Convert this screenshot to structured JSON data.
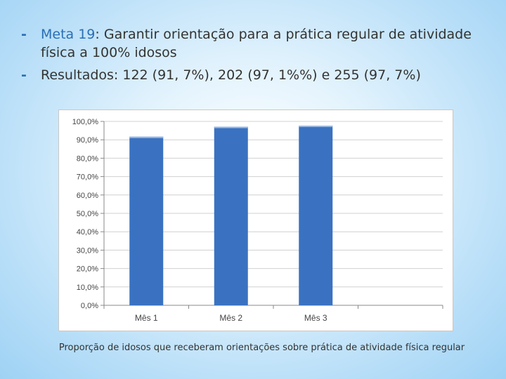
{
  "slide": {
    "bullet1_prefix": "Meta 19",
    "bullet1_rest": ": Garantir orientação para a prática regular de atividade física a 100% idosos",
    "bullet2": "Resultados: 122 (91, 7%), 202 (97, 1%%) e 255 (97, 7%)",
    "caption": "Proporção de idosos que receberam orientações sobre prática de atividade física regular",
    "dash_glyph": "-",
    "accent_color": "#2a6fb3"
  },
  "chart_data": {
    "type": "bar",
    "categories": [
      "Mês 1",
      "Mês 2",
      "Mês 3"
    ],
    "values": [
      91.7,
      97.1,
      97.7
    ],
    "ylim": [
      0,
      100
    ],
    "yticks": [
      "0,0%",
      "10,0%",
      "20,0%",
      "30,0%",
      "40,0%",
      "50,0%",
      "60,0%",
      "70,0%",
      "80,0%",
      "90,0%",
      "100,0%"
    ],
    "grid": true,
    "bar_color": "#3a72c1",
    "legend": "none"
  }
}
